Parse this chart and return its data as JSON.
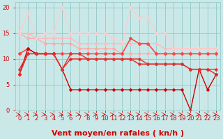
{
  "xlabel": "Vent moyen/en rafales ( kn/h )",
  "background_color": "#cbe8e8",
  "grid_color": "#99cccc",
  "xlim": [
    -0.5,
    23.5
  ],
  "ylim": [
    0,
    21
  ],
  "yticks": [
    0,
    5,
    10,
    15,
    20
  ],
  "xticks": [
    0,
    1,
    2,
    3,
    4,
    5,
    6,
    7,
    8,
    9,
    10,
    11,
    12,
    13,
    14,
    15,
    16,
    17,
    18,
    19,
    20,
    21,
    22,
    23
  ],
  "series": [
    {
      "x": [
        0,
        1,
        2,
        3,
        4,
        5,
        6,
        7,
        8,
        9,
        10,
        11,
        12,
        13,
        14,
        15,
        16,
        17,
        18,
        19,
        20,
        21,
        22,
        23
      ],
      "y": [
        15,
        15,
        14,
        14,
        14,
        14,
        14,
        13,
        13,
        13,
        13,
        13,
        13,
        13,
        13,
        13,
        13,
        12,
        12,
        12,
        12,
        12,
        12,
        12
      ],
      "color": "#ffbbbb",
      "lw": 1.0,
      "marker": "D",
      "ms": 2.5
    },
    {
      "x": [
        0,
        1,
        2,
        3,
        4,
        5,
        6,
        7,
        8,
        9,
        10,
        11,
        12,
        13,
        14,
        15,
        16,
        17,
        18,
        19,
        20,
        21,
        22,
        23
      ],
      "y": [
        15,
        14,
        14,
        13,
        13,
        13,
        13,
        12,
        12,
        12,
        12,
        12,
        11,
        11,
        11,
        11,
        11,
        11,
        11,
        11,
        11,
        11,
        11,
        11
      ],
      "color": "#ffaaaa",
      "lw": 1.0,
      "marker": "D",
      "ms": 2.5
    },
    {
      "x": [
        0,
        1,
        2,
        3,
        4,
        5,
        6,
        7,
        8,
        9,
        10,
        11,
        12,
        13,
        14,
        15,
        16,
        17,
        18,
        19,
        20,
        21,
        22,
        23
      ],
      "y": [
        15,
        19,
        14,
        15,
        15,
        20,
        15,
        15,
        15,
        15,
        15,
        14,
        13,
        20,
        18,
        18,
        15,
        15,
        12,
        12,
        12,
        12,
        12,
        12
      ],
      "color": "#ffcccc",
      "lw": 1.0,
      "marker": "D",
      "ms": 2.5
    },
    {
      "x": [
        0,
        1,
        2,
        3,
        4,
        5,
        6,
        7,
        8,
        9,
        10,
        11,
        12,
        13,
        14,
        15,
        16,
        17,
        18,
        19,
        20,
        21,
        22,
        23
      ],
      "y": [
        11,
        12,
        11,
        11,
        11,
        11,
        11,
        11,
        11,
        11,
        11,
        11,
        11,
        14,
        13,
        13,
        11,
        11,
        11,
        11,
        11,
        11,
        11,
        11
      ],
      "color": "#ff6666",
      "lw": 1.0,
      "marker": "D",
      "ms": 2.5
    },
    {
      "x": [
        0,
        1,
        2,
        3,
        4,
        5,
        6,
        7,
        8,
        9,
        10,
        11,
        12,
        13,
        14,
        15,
        16,
        17,
        18,
        19,
        20,
        21,
        22,
        23
      ],
      "y": [
        11,
        12,
        11,
        11,
        11,
        11,
        11,
        11,
        11,
        11,
        11,
        11,
        11,
        14,
        13,
        13,
        11,
        11,
        11,
        11,
        11,
        11,
        11,
        11
      ],
      "color": "#ff4444",
      "lw": 1.0,
      "marker": "D",
      "ms": 2.5
    },
    {
      "x": [
        0,
        1,
        2,
        3,
        4,
        5,
        6,
        7,
        8,
        9,
        10,
        11,
        12,
        13,
        14,
        15,
        16,
        17,
        18,
        19,
        20,
        21,
        22,
        23
      ],
      "y": [
        7,
        12,
        11,
        11,
        11,
        8,
        4,
        4,
        4,
        4,
        4,
        4,
        4,
        4,
        4,
        4,
        4,
        4,
        4,
        4,
        0,
        8,
        4,
        7
      ],
      "color": "#cc0000",
      "lw": 1.0,
      "marker": "D",
      "ms": 2.5
    },
    {
      "x": [
        0,
        1,
        2,
        3,
        4,
        5,
        6,
        7,
        8,
        9,
        10,
        11,
        12,
        13,
        14,
        15,
        16,
        17,
        18,
        19,
        20,
        21,
        22,
        23
      ],
      "y": [
        7,
        11,
        11,
        11,
        11,
        8,
        10,
        10,
        10,
        10,
        10,
        10,
        10,
        10,
        9,
        9,
        9,
        9,
        9,
        9,
        8,
        8,
        8,
        7
      ],
      "color": "#ee2222",
      "lw": 1.0,
      "marker": "D",
      "ms": 2.5
    },
    {
      "x": [
        0,
        1,
        2,
        3,
        4,
        5,
        6,
        7,
        8,
        9,
        10,
        11,
        12,
        13,
        14,
        15,
        16,
        17,
        18,
        19,
        20,
        21,
        22,
        23
      ],
      "y": [
        8,
        11,
        11,
        11,
        11,
        8,
        11,
        11,
        10,
        10,
        10,
        10,
        10,
        10,
        10,
        9,
        9,
        9,
        9,
        9,
        8,
        8,
        8,
        8
      ],
      "color": "#dd3333",
      "lw": 1.0,
      "marker": "D",
      "ms": 2.5
    }
  ],
  "xlabel_color": "#cc0000",
  "xlabel_fontsize": 8,
  "tick_fontsize": 6,
  "tick_color": "#cc0000"
}
